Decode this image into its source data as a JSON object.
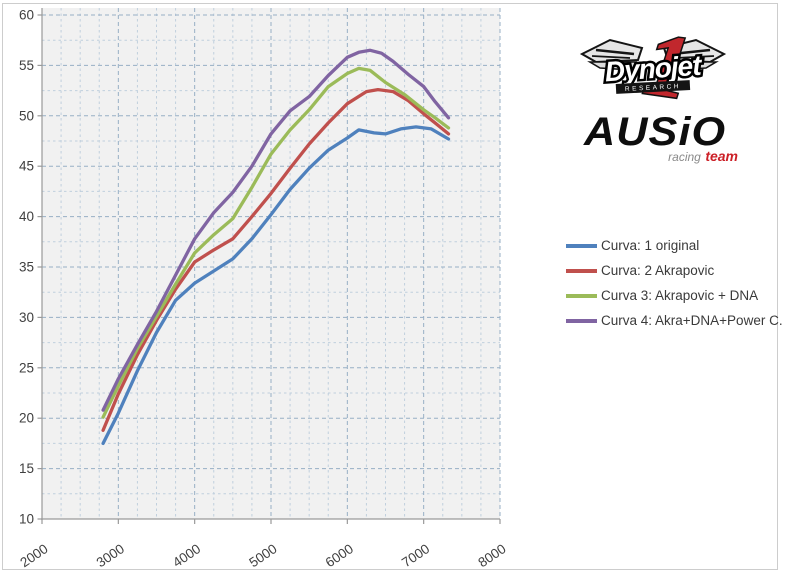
{
  "chart_data": {
    "type": "line",
    "title": "",
    "xlabel": "",
    "ylabel": "",
    "xlim": [
      2000,
      8000
    ],
    "ylim": [
      10,
      60
    ],
    "x_ticks": [
      2000,
      3000,
      4000,
      5000,
      6000,
      7000,
      8000
    ],
    "y_ticks": [
      60,
      55,
      50,
      45,
      40,
      35,
      30,
      25,
      20,
      15,
      10
    ],
    "x_minor_step": 250,
    "y_minor_step": 2.5,
    "grid": "dashed major and minor, light blue on pale gray plot area",
    "legend_position": "right",
    "series": [
      {
        "name": "Curva: 1 original",
        "color": "#4f81bd",
        "points": [
          [
            2800,
            17.5
          ],
          [
            3000,
            20.5
          ],
          [
            3250,
            24.7
          ],
          [
            3500,
            28.5
          ],
          [
            3750,
            31.7
          ],
          [
            4000,
            33.4
          ],
          [
            4250,
            34.6
          ],
          [
            4500,
            35.8
          ],
          [
            4750,
            37.8
          ],
          [
            5000,
            40.2
          ],
          [
            5250,
            42.7
          ],
          [
            5500,
            44.8
          ],
          [
            5750,
            46.6
          ],
          [
            6000,
            47.8
          ],
          [
            6150,
            48.6
          ],
          [
            6350,
            48.3
          ],
          [
            6500,
            48.2
          ],
          [
            6700,
            48.7
          ],
          [
            6900,
            48.9
          ],
          [
            7100,
            48.7
          ],
          [
            7325,
            47.7
          ]
        ]
      },
      {
        "name": "Curva: 2 Akrapovic",
        "color": "#c0504d",
        "points": [
          [
            2800,
            18.8
          ],
          [
            3000,
            22.4
          ],
          [
            3250,
            26.3
          ],
          [
            3500,
            29.7
          ],
          [
            3750,
            32.8
          ],
          [
            4000,
            35.5
          ],
          [
            4250,
            36.7
          ],
          [
            4500,
            37.8
          ],
          [
            4750,
            40.0
          ],
          [
            5000,
            42.3
          ],
          [
            5250,
            44.8
          ],
          [
            5500,
            47.2
          ],
          [
            5750,
            49.3
          ],
          [
            6000,
            51.2
          ],
          [
            6250,
            52.4
          ],
          [
            6400,
            52.6
          ],
          [
            6600,
            52.4
          ],
          [
            6800,
            51.5
          ],
          [
            7000,
            50.2
          ],
          [
            7150,
            49.3
          ],
          [
            7325,
            48.2
          ]
        ]
      },
      {
        "name": "Curva 3: Akrapovic + DNA",
        "color": "#9bbb59",
        "points": [
          [
            2800,
            20.1
          ],
          [
            3000,
            23.2
          ],
          [
            3250,
            26.9
          ],
          [
            3500,
            30.1
          ],
          [
            3750,
            33.3
          ],
          [
            4000,
            36.4
          ],
          [
            4250,
            38.2
          ],
          [
            4500,
            39.8
          ],
          [
            4750,
            42.9
          ],
          [
            5000,
            46.2
          ],
          [
            5250,
            48.6
          ],
          [
            5500,
            50.6
          ],
          [
            5750,
            52.9
          ],
          [
            6000,
            54.2
          ],
          [
            6150,
            54.7
          ],
          [
            6300,
            54.5
          ],
          [
            6500,
            53.3
          ],
          [
            6750,
            52.1
          ],
          [
            7000,
            50.6
          ],
          [
            7150,
            49.8
          ],
          [
            7325,
            48.8
          ]
        ]
      },
      {
        "name": "Curva 4: Akra+DNA+Power C.",
        "color": "#8064a2",
        "points": [
          [
            2800,
            20.8
          ],
          [
            3000,
            23.9
          ],
          [
            3250,
            27.3
          ],
          [
            3500,
            30.6
          ],
          [
            3750,
            34.2
          ],
          [
            4000,
            37.8
          ],
          [
            4250,
            40.4
          ],
          [
            4500,
            42.4
          ],
          [
            4750,
            45.0
          ],
          [
            5000,
            48.2
          ],
          [
            5250,
            50.5
          ],
          [
            5500,
            51.9
          ],
          [
            5750,
            54.0
          ],
          [
            6000,
            55.8
          ],
          [
            6150,
            56.3
          ],
          [
            6300,
            56.5
          ],
          [
            6450,
            56.2
          ],
          [
            6600,
            55.4
          ],
          [
            6800,
            54.1
          ],
          [
            7000,
            52.9
          ],
          [
            7150,
            51.4
          ],
          [
            7325,
            49.8
          ]
        ]
      }
    ],
    "colors": {
      "plot_bg": "#f1f1f1",
      "grid_minor": "#c0cfdd",
      "grid_major": "#97afc5",
      "axis": "#9a9a9a",
      "tick_label": "#3f3f3f"
    }
  },
  "logos": {
    "dynojet": {
      "one": "1",
      "word": "Dynojet",
      "banner": "RESEARCH"
    },
    "ausio": {
      "word": "AUSiO",
      "sub_gray": "racing",
      "sub_red": "team"
    }
  }
}
